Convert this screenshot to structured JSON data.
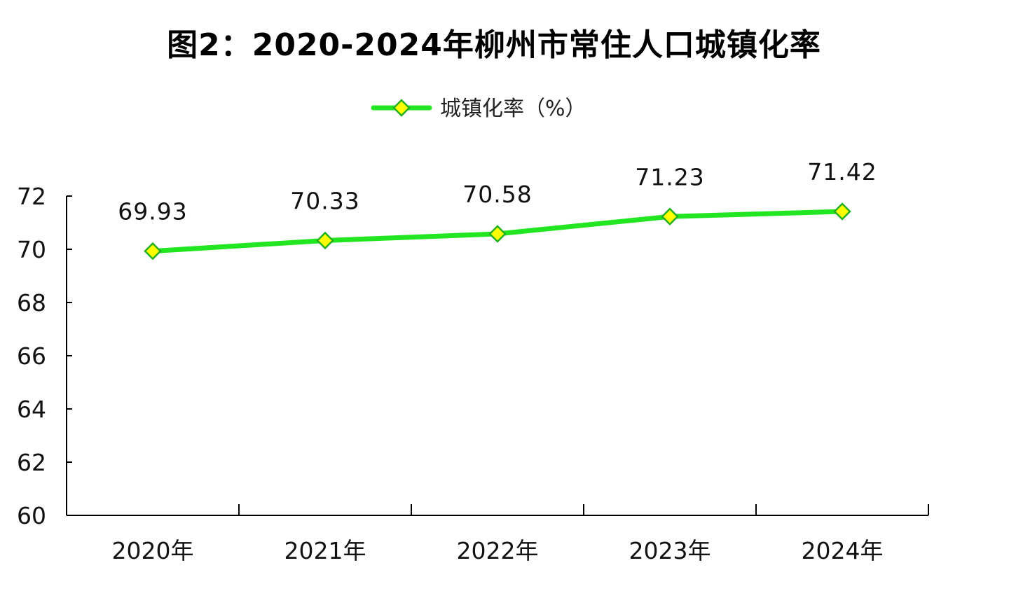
{
  "colors": {
    "line": "#22e622",
    "marker_fill": "#ffff00",
    "marker_stroke": "#22b022",
    "axis": "#000000"
  },
  "chart_data": {
    "type": "line",
    "title": "图2：2020-2024年柳州市常住人口城镇化率",
    "xlabel": "",
    "ylabel": "",
    "categories": [
      "2020年",
      "2021年",
      "2022年",
      "2023年",
      "2024年"
    ],
    "series": [
      {
        "name": "城镇化率（%）",
        "values": [
          69.93,
          70.33,
          70.58,
          71.23,
          71.42
        ],
        "labels": [
          "69.93",
          "70.33",
          "70.58",
          "71.23",
          "71.42"
        ]
      }
    ],
    "ylim": [
      60,
      72
    ],
    "yticks": [
      "60",
      "62",
      "64",
      "66",
      "68",
      "70",
      "72"
    ],
    "grid": false,
    "legend_position": "top-center"
  }
}
